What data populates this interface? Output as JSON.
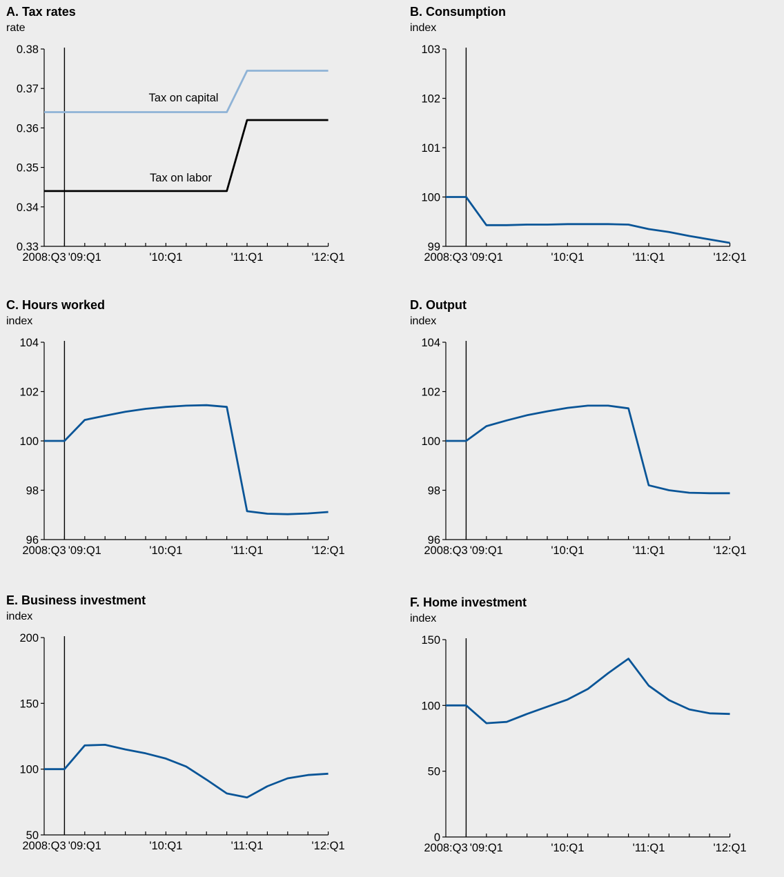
{
  "chart_data": [
    {
      "id": "A",
      "type": "line",
      "title": "A. Tax rates",
      "ylabel": "rate",
      "x": [
        "2008:Q3",
        "2008:Q4",
        "'09:Q1",
        "2009:Q2",
        "2009:Q3",
        "2009:Q4",
        "'10:Q1",
        "2010:Q2",
        "2010:Q3",
        "2010:Q4",
        "'11:Q1",
        "2011:Q2",
        "2011:Q3",
        "2011:Q4",
        "'12:Q1"
      ],
      "x_tick_labels": [
        "2008:Q3",
        "'09:Q1",
        "'10:Q1",
        "'11:Q1",
        "'12:Q1"
      ],
      "ylim": [
        0.33,
        0.38
      ],
      "y_ticks": [
        "0.33",
        "0.34",
        "0.35",
        "0.36",
        "0.37",
        "0.38"
      ],
      "event_line_x": "2008:Q4",
      "series": [
        {
          "name": "Tax on capital",
          "color": "#8fb3d6",
          "values": [
            0.364,
            0.364,
            0.364,
            0.364,
            0.364,
            0.364,
            0.364,
            0.364,
            0.364,
            0.364,
            0.3745,
            0.3745,
            0.3745,
            0.3745,
            0.3745
          ]
        },
        {
          "name": "Tax on labor",
          "color": "#000000",
          "values": [
            0.344,
            0.344,
            0.344,
            0.344,
            0.344,
            0.344,
            0.344,
            0.344,
            0.344,
            0.344,
            0.362,
            0.362,
            0.362,
            0.362,
            0.362
          ]
        }
      ]
    },
    {
      "id": "B",
      "type": "line",
      "title": "B. Consumption",
      "ylabel": "index",
      "x": [
        "2008:Q3",
        "2008:Q4",
        "'09:Q1",
        "2009:Q2",
        "2009:Q3",
        "2009:Q4",
        "'10:Q1",
        "2010:Q2",
        "2010:Q3",
        "2010:Q4",
        "'11:Q1",
        "2011:Q2",
        "2011:Q3",
        "2011:Q4",
        "'12:Q1"
      ],
      "x_tick_labels": [
        "2008:Q3",
        "'09:Q1",
        "'10:Q1",
        "'11:Q1",
        "'12:Q1"
      ],
      "ylim": [
        99,
        103
      ],
      "y_ticks": [
        "99",
        "100",
        "101",
        "102",
        "103"
      ],
      "event_line_x": "2008:Q4",
      "series": [
        {
          "color": "#0a5597",
          "values": [
            100,
            100,
            99.43,
            99.43,
            99.44,
            99.44,
            99.45,
            99.45,
            99.45,
            99.44,
            99.35,
            99.29,
            99.21,
            99.14,
            99.07
          ]
        }
      ]
    },
    {
      "id": "C",
      "type": "line",
      "title": "C. Hours worked",
      "ylabel": "index",
      "x": [
        "2008:Q3",
        "2008:Q4",
        "'09:Q1",
        "2009:Q2",
        "2009:Q3",
        "2009:Q4",
        "'10:Q1",
        "2010:Q2",
        "2010:Q3",
        "2010:Q4",
        "'11:Q1",
        "2011:Q2",
        "2011:Q3",
        "2011:Q4",
        "'12:Q1"
      ],
      "x_tick_labels": [
        "2008:Q3",
        "'09:Q1",
        "'10:Q1",
        "'11:Q1",
        "'12:Q1"
      ],
      "ylim": [
        96,
        104
      ],
      "y_ticks": [
        "96",
        "98",
        "100",
        "102",
        "104"
      ],
      "event_line_x": "2008:Q4",
      "series": [
        {
          "color": "#0a5597",
          "values": [
            100,
            100,
            100.85,
            101.02,
            101.18,
            101.3,
            101.38,
            101.43,
            101.45,
            101.38,
            97.15,
            97.05,
            97.03,
            97.06,
            97.12
          ]
        }
      ]
    },
    {
      "id": "D",
      "type": "line",
      "title": "D. Output",
      "ylabel": "index",
      "x": [
        "2008:Q3",
        "2008:Q4",
        "'09:Q1",
        "2009:Q2",
        "2009:Q3",
        "2009:Q4",
        "'10:Q1",
        "2010:Q2",
        "2010:Q3",
        "2010:Q4",
        "'11:Q1",
        "2011:Q2",
        "2011:Q3",
        "2011:Q4",
        "'12:Q1"
      ],
      "x_tick_labels": [
        "2008:Q3",
        "'09:Q1",
        "'10:Q1",
        "'11:Q1",
        "'12:Q1"
      ],
      "ylim": [
        96,
        104
      ],
      "y_ticks": [
        "96",
        "98",
        "100",
        "102",
        "104"
      ],
      "event_line_x": "2008:Q4",
      "series": [
        {
          "color": "#0a5597",
          "values": [
            100,
            100,
            100.6,
            100.83,
            101.04,
            101.2,
            101.34,
            101.43,
            101.43,
            101.32,
            98.2,
            98,
            97.9,
            97.88,
            97.88
          ]
        }
      ]
    },
    {
      "id": "E",
      "type": "line",
      "title": "E. Business investment",
      "ylabel": "index",
      "x": [
        "2008:Q3",
        "2008:Q4",
        "'09:Q1",
        "2009:Q2",
        "2009:Q3",
        "2009:Q4",
        "'10:Q1",
        "2010:Q2",
        "2010:Q3",
        "2010:Q4",
        "'11:Q1",
        "2011:Q2",
        "2011:Q3",
        "2011:Q4",
        "'12:Q1"
      ],
      "x_tick_labels": [
        "2008:Q3",
        "'09:Q1",
        "'10:Q1",
        "'11:Q1",
        "'12:Q1"
      ],
      "ylim": [
        50,
        200
      ],
      "y_ticks": [
        "50",
        "100",
        "150",
        "200"
      ],
      "event_line_x": "2008:Q4",
      "series": [
        {
          "color": "#0a5597",
          "values": [
            100,
            100,
            118,
            118.5,
            115,
            112,
            108,
            102,
            92,
            81.5,
            78.5,
            87,
            93,
            95.5,
            96.5
          ]
        }
      ]
    },
    {
      "id": "F",
      "type": "line",
      "title": "F. Home investment",
      "ylabel": "index",
      "x": [
        "2008:Q3",
        "2008:Q4",
        "'09:Q1",
        "2009:Q2",
        "2009:Q3",
        "2009:Q4",
        "'10:Q1",
        "2010:Q2",
        "2010:Q3",
        "2010:Q4",
        "'11:Q1",
        "2011:Q2",
        "2011:Q3",
        "2011:Q4",
        "'12:Q1"
      ],
      "x_tick_labels": [
        "2008:Q3",
        "'09:Q1",
        "'10:Q1",
        "'11:Q1",
        "'12:Q1"
      ],
      "ylim": [
        0,
        150
      ],
      "y_ticks": [
        "0",
        "50",
        "100",
        "150"
      ],
      "event_line_x": "2008:Q4",
      "series": [
        {
          "color": "#0a5597",
          "values": [
            100,
            100,
            86.5,
            87.5,
            93.5,
            99,
            104.5,
            112.5,
            124.5,
            135.5,
            115,
            104,
            97,
            94,
            93.5
          ]
        }
      ]
    }
  ]
}
